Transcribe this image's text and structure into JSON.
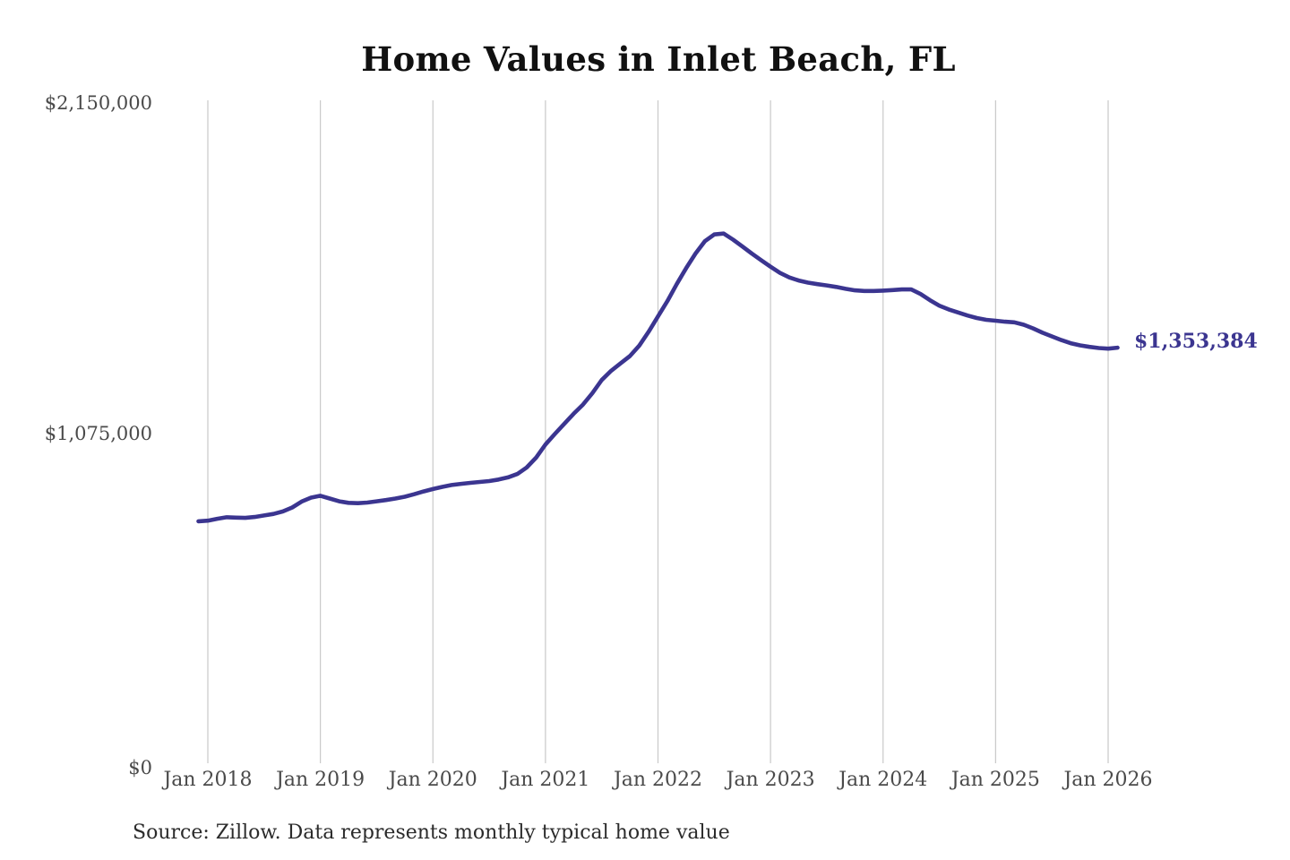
{
  "chart_data": {
    "type": "line",
    "title": "Home Values in Inlet Beach, FL",
    "xlabel": "",
    "ylabel": "",
    "grid": "vertical-only",
    "legend": "none",
    "x_range_years": [
      2018,
      2026
    ],
    "y_range": [
      0,
      2150000
    ],
    "y_ticks": [
      {
        "value": 2150000,
        "label": "$2,150,000"
      },
      {
        "value": 1075000,
        "label": "$1,075,000"
      },
      {
        "value": 0,
        "label": "$0"
      }
    ],
    "x_ticks": [
      {
        "year": 2018,
        "label": "Jan 2018"
      },
      {
        "year": 2019,
        "label": "Jan 2019"
      },
      {
        "year": 2020,
        "label": "Jan 2020"
      },
      {
        "year": 2021,
        "label": "Jan 2021"
      },
      {
        "year": 2022,
        "label": "Jan 2022"
      },
      {
        "year": 2023,
        "label": "Jan 2023"
      },
      {
        "year": 2024,
        "label": "Jan 2024"
      },
      {
        "year": 2025,
        "label": "Jan 2025"
      },
      {
        "year": 2026,
        "label": "Jan 2026"
      }
    ],
    "series": [
      {
        "name": "Monthly typical home value",
        "start_year": 2017,
        "start_month": 12,
        "step_months": 1,
        "values": [
          788000,
          790000,
          796000,
          801000,
          800000,
          799000,
          802000,
          807000,
          812000,
          820000,
          833000,
          852000,
          865000,
          871000,
          862000,
          853000,
          848000,
          847000,
          849000,
          853000,
          857000,
          862000,
          868000,
          876000,
          885000,
          893000,
          900000,
          906000,
          910000,
          913000,
          916000,
          919000,
          924000,
          931000,
          942000,
          963000,
          995000,
          1038000,
          1072000,
          1105000,
          1138000,
          1168000,
          1205000,
          1248000,
          1278000,
          1302000,
          1326000,
          1360000,
          1405000,
          1455000,
          1505000,
          1560000,
          1612000,
          1660000,
          1700000,
          1722000,
          1725000,
          1705000,
          1683000,
          1660000,
          1638000,
          1617000,
          1597000,
          1582000,
          1572000,
          1565000,
          1560000,
          1556000,
          1551000,
          1545000,
          1540000,
          1538000,
          1538000,
          1539000,
          1541000,
          1543000,
          1543000,
          1528000,
          1508000,
          1490000,
          1478000,
          1468000,
          1458000,
          1450000,
          1444000,
          1441000,
          1438000,
          1436000,
          1428000,
          1416000,
          1402000,
          1390000,
          1378000,
          1368000,
          1361000,
          1356000,
          1352000,
          1350000,
          1353384
        ]
      }
    ],
    "final_value": 1353384,
    "end_label": "$1,353,384",
    "colors": {
      "line": "#3b3590",
      "grid": "#c9c9c9",
      "title": "#111111",
      "tick": "#4a4a4a",
      "source": "#2b2b2b",
      "annotation": "#3b3590"
    }
  },
  "footer": {
    "source": "Source: Zillow. Data represents monthly typical home value"
  }
}
